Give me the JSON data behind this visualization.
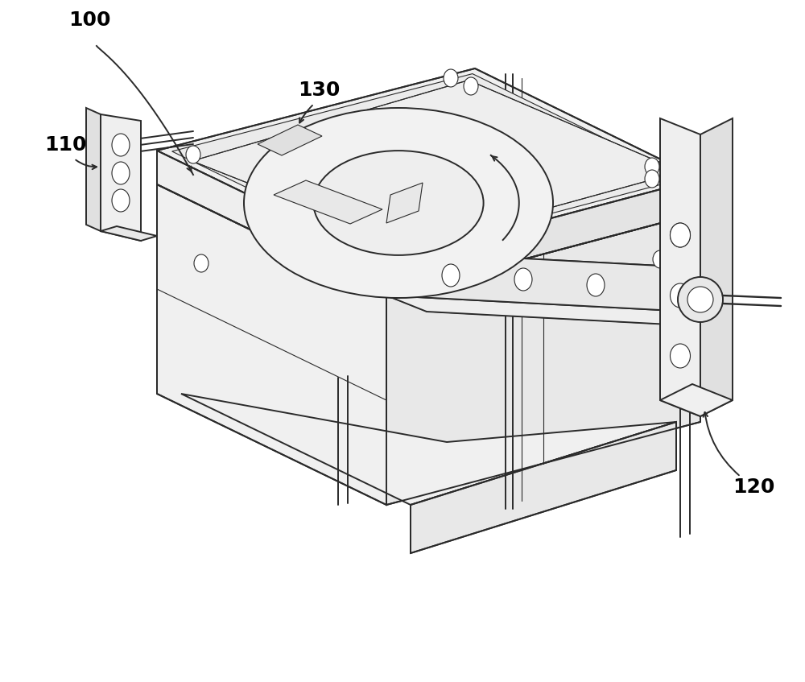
{
  "bg_color": "#ffffff",
  "lc": "#2a2a2a",
  "lw": 1.4,
  "lw_thin": 0.8,
  "figsize": [
    10.0,
    8.47
  ],
  "dpi": 100,
  "label_fs": 18,
  "label_color": "#000000"
}
